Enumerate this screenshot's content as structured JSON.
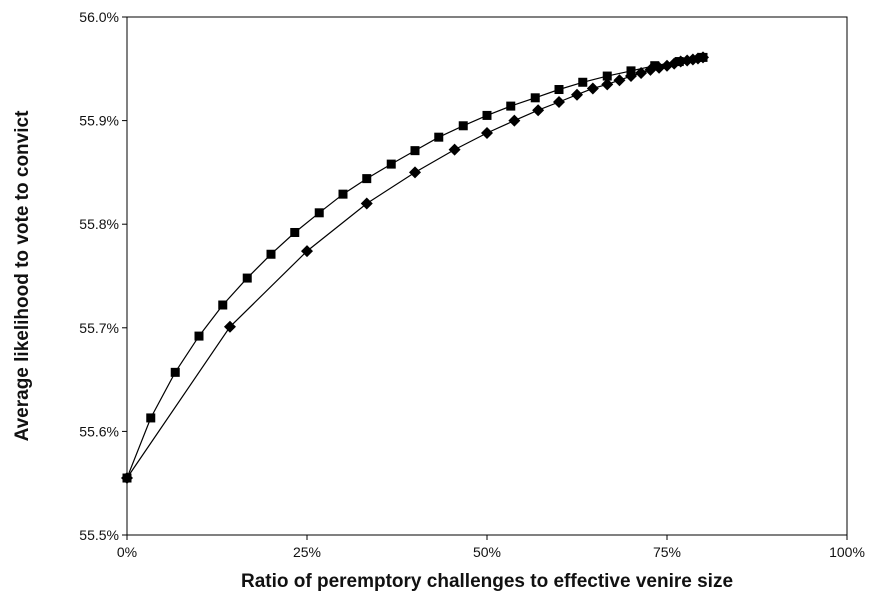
{
  "chart_data": {
    "type": "line",
    "title": "",
    "xlabel": "Ratio of peremptory challenges to effective venire size",
    "ylabel": "Average likelihood to vote to convict",
    "xlim": [
      0,
      100
    ],
    "ylim": [
      55.5,
      56.0
    ],
    "x_ticks": [
      "0%",
      "25%",
      "50%",
      "75%",
      "100%"
    ],
    "y_ticks": [
      "55.5%",
      "55.6%",
      "55.7%",
      "55.8%",
      "55.9%",
      "56.0%"
    ],
    "grid": false,
    "legend": "none",
    "series": [
      {
        "marker": "square",
        "color": "#000000",
        "points": [
          [
            0,
            55.555
          ],
          [
            3.3,
            55.613
          ],
          [
            6.7,
            55.657
          ],
          [
            10,
            55.692
          ],
          [
            13.3,
            55.722
          ],
          [
            16.7,
            55.748
          ],
          [
            20,
            55.771
          ],
          [
            23.3,
            55.792
          ],
          [
            26.7,
            55.811
          ],
          [
            30,
            55.829
          ],
          [
            33.3,
            55.844
          ],
          [
            36.7,
            55.858
          ],
          [
            40,
            55.871
          ],
          [
            43.3,
            55.884
          ],
          [
            46.7,
            55.895
          ],
          [
            50,
            55.905
          ],
          [
            53.3,
            55.914
          ],
          [
            56.7,
            55.922
          ],
          [
            60,
            55.93
          ],
          [
            63.3,
            55.937
          ],
          [
            66.7,
            55.943
          ],
          [
            70,
            55.948
          ],
          [
            73.3,
            55.953
          ],
          [
            76.7,
            55.957
          ],
          [
            80,
            55.961
          ]
        ]
      },
      {
        "marker": "diamond",
        "color": "#000000",
        "points": [
          [
            0,
            55.555
          ],
          [
            14.3,
            55.701
          ],
          [
            25,
            55.774
          ],
          [
            33.3,
            55.82
          ],
          [
            40,
            55.85
          ],
          [
            45.5,
            55.872
          ],
          [
            50,
            55.888
          ],
          [
            53.8,
            55.9
          ],
          [
            57.1,
            55.91
          ],
          [
            60,
            55.918
          ],
          [
            62.5,
            55.925
          ],
          [
            64.7,
            55.931
          ],
          [
            66.7,
            55.935
          ],
          [
            68.4,
            55.939
          ],
          [
            70,
            55.943
          ],
          [
            71.4,
            55.946
          ],
          [
            72.7,
            55.949
          ],
          [
            73.9,
            55.951
          ],
          [
            75,
            55.953
          ],
          [
            76,
            55.955
          ],
          [
            76.9,
            55.957
          ],
          [
            77.8,
            55.958
          ],
          [
            78.6,
            55.959
          ],
          [
            79.3,
            55.96
          ],
          [
            80,
            55.961
          ]
        ]
      }
    ]
  }
}
